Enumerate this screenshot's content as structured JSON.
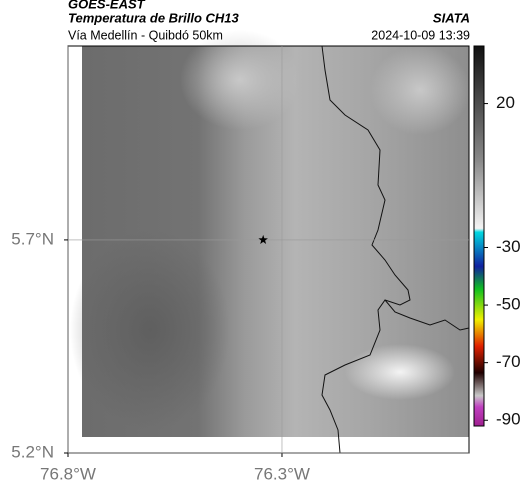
{
  "header": {
    "source": "GOES-EAST",
    "title": "Temperatura de Brillo CH13",
    "brand": "SIATA",
    "subtitle": "Vía Medellín - Quibdó 50km",
    "datetime": "2024-10-09 13:39"
  },
  "map": {
    "xlim": [
      -76.8,
      -75.863
    ],
    "ylim": [
      5.2,
      6.155
    ],
    "xticks": [
      {
        "value": -76.8,
        "label": "76.8°W"
      },
      {
        "value": -76.3,
        "label": "76.3°W"
      }
    ],
    "yticks": [
      {
        "value": 5.2,
        "label": "5.2°N"
      },
      {
        "value": 5.7,
        "label": "5.7°N"
      }
    ],
    "marker": {
      "lon": -76.344,
      "lat": 5.7
    }
  },
  "colorbar": {
    "lim": [
      40,
      -92
    ],
    "ticks": [
      20,
      -30,
      -50,
      -70,
      -90
    ]
  }
}
